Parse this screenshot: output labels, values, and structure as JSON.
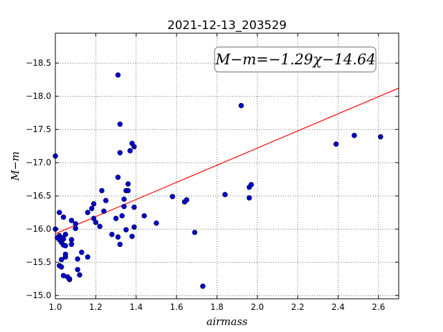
{
  "chart_data": {
    "type": "scatter",
    "title": "2021-12-13_203529",
    "xlabel": "airmass",
    "ylabel": "M−m",
    "xlim": [
      1.0,
      2.7
    ],
    "ylim": [
      -18.95,
      -14.95
    ],
    "y_inverted": true,
    "grid": true,
    "xticks": [
      1.0,
      1.2,
      1.4,
      1.6,
      1.8,
      2.0,
      2.2,
      2.4,
      2.6
    ],
    "xtick_labels": [
      "1.0",
      "1.2",
      "1.4",
      "1.6",
      "1.8",
      "2.0",
      "2.2",
      "2.4",
      "2.6"
    ],
    "yticks": [
      -15.0,
      -15.5,
      -16.0,
      -16.5,
      -17.0,
      -17.5,
      -18.0,
      -18.5
    ],
    "ytick_labels": [
      "−15.0",
      "−15.5",
      "−16.0",
      "−16.5",
      "−17.0",
      "−17.5",
      "−18.0",
      "−18.5"
    ],
    "annotation": "M−m=−1.29χ−14.64",
    "fit": {
      "slope": -1.29,
      "intercept": -14.64,
      "x_range": [
        1.0,
        2.7
      ],
      "color": "#ff0000"
    },
    "point_color": "#0000cc",
    "points": [
      [
        1.0,
        -16.0
      ],
      [
        1.0,
        -17.1
      ],
      [
        1.01,
        -15.87
      ],
      [
        1.02,
        -15.45
      ],
      [
        1.02,
        -16.25
      ],
      [
        1.02,
        -15.84
      ],
      [
        1.02,
        -15.9
      ],
      [
        1.03,
        -15.43
      ],
      [
        1.03,
        -15.54
      ],
      [
        1.03,
        -15.8
      ],
      [
        1.03,
        -15.87
      ],
      [
        1.04,
        -15.3
      ],
      [
        1.04,
        -15.85
      ],
      [
        1.04,
        -15.76
      ],
      [
        1.04,
        -16.18
      ],
      [
        1.05,
        -15.58
      ],
      [
        1.05,
        -15.62
      ],
      [
        1.05,
        -15.75
      ],
      [
        1.05,
        -15.92
      ],
      [
        1.06,
        -15.28
      ],
      [
        1.07,
        -15.24
      ],
      [
        1.07,
        -15.25
      ],
      [
        1.08,
        -15.84
      ],
      [
        1.08,
        -15.77
      ],
      [
        1.08,
        -16.13
      ],
      [
        1.1,
        -16.08
      ],
      [
        1.1,
        -16.01
      ],
      [
        1.11,
        -15.39
      ],
      [
        1.11,
        -15.55
      ],
      [
        1.12,
        -15.31
      ],
      [
        1.13,
        -15.65
      ],
      [
        1.16,
        -15.58
      ],
      [
        1.16,
        -16.25
      ],
      [
        1.18,
        -16.31
      ],
      [
        1.19,
        -16.38
      ],
      [
        1.19,
        -16.16
      ],
      [
        1.2,
        -16.1
      ],
      [
        1.22,
        -16.04
      ],
      [
        1.23,
        -16.58
      ],
      [
        1.24,
        -16.27
      ],
      [
        1.25,
        -16.43
      ],
      [
        1.28,
        -15.92
      ],
      [
        1.3,
        -16.16
      ],
      [
        1.31,
        -15.88
      ],
      [
        1.31,
        -16.78
      ],
      [
        1.31,
        -18.32
      ],
      [
        1.32,
        -15.77
      ],
      [
        1.32,
        -17.15
      ],
      [
        1.32,
        -17.58
      ],
      [
        1.33,
        -16.2
      ],
      [
        1.34,
        -16.34
      ],
      [
        1.34,
        -16.45
      ],
      [
        1.35,
        -15.99
      ],
      [
        1.35,
        -16.58
      ],
      [
        1.36,
        -16.58
      ],
      [
        1.36,
        -16.68
      ],
      [
        1.37,
        -17.18
      ],
      [
        1.38,
        -15.89
      ],
      [
        1.38,
        -17.29
      ],
      [
        1.39,
        -16.03
      ],
      [
        1.39,
        -16.33
      ],
      [
        1.39,
        -17.24
      ],
      [
        1.44,
        -16.2
      ],
      [
        1.5,
        -16.09
      ],
      [
        1.58,
        -16.49
      ],
      [
        1.64,
        -16.41
      ],
      [
        1.65,
        -16.44
      ],
      [
        1.69,
        -15.95
      ],
      [
        1.73,
        -15.14
      ],
      [
        1.82,
        -18.42
      ],
      [
        1.84,
        -16.52
      ],
      [
        1.92,
        -17.86
      ],
      [
        1.96,
        -16.47
      ],
      [
        1.96,
        -16.63
      ],
      [
        1.97,
        -16.67
      ],
      [
        2.39,
        -17.28
      ],
      [
        2.48,
        -17.41
      ],
      [
        2.61,
        -17.39
      ]
    ]
  }
}
